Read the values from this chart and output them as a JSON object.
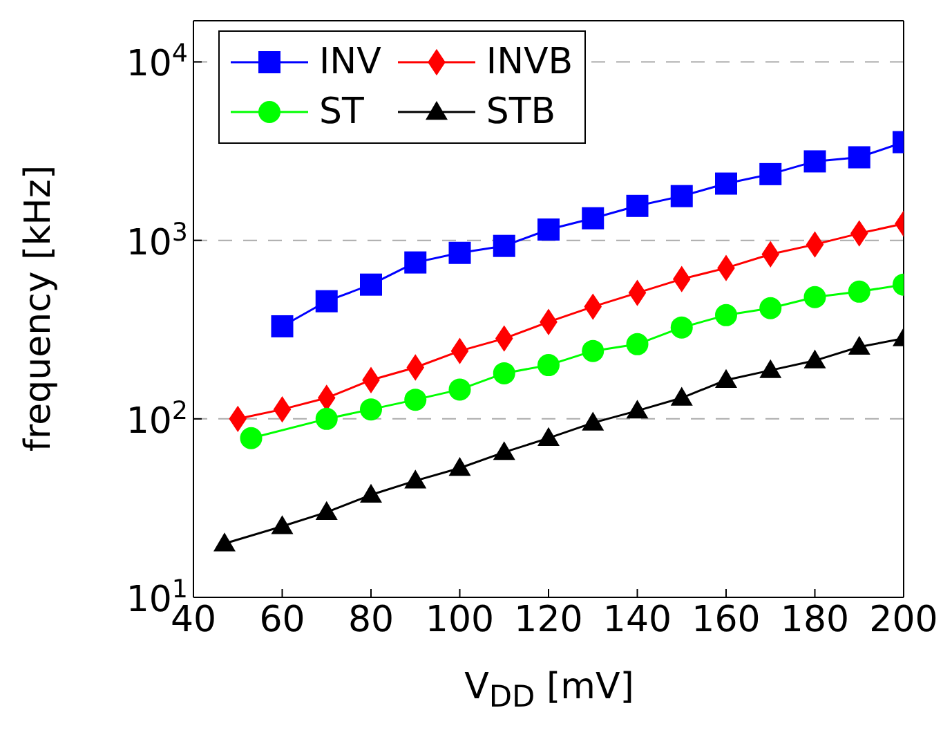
{
  "chart_data": {
    "type": "line",
    "xlabel": "V$_{DD}$ [mV]",
    "ylabel": "frequency [kHz]",
    "xlim": [
      40,
      200
    ],
    "xticks": [
      40,
      60,
      80,
      100,
      120,
      140,
      160,
      180,
      200
    ],
    "ylim": [
      10,
      17000
    ],
    "yticks": [
      {
        "value": 10,
        "label": "10$^{1}$"
      },
      {
        "value": 100,
        "label": "10$^{2}$"
      },
      {
        "value": 1000,
        "label": "10$^{3}$"
      },
      {
        "value": 10000,
        "label": "10$^{4}$"
      }
    ],
    "log": "y",
    "grid": "y",
    "legend": "top left",
    "line_style": "solid",
    "series": [
      {
        "name": "INV",
        "color": "#0000ff",
        "marker": "square",
        "x": [
          60,
          70,
          80,
          90,
          100,
          110,
          120,
          130,
          140,
          150,
          160,
          170,
          180,
          190,
          200
        ],
        "values": [
          330,
          456,
          565,
          752,
          851,
          931,
          1150,
          1330,
          1560,
          1770,
          2080,
          2350,
          2770,
          2920,
          3550
        ]
      },
      {
        "name": "INVB",
        "color": "#ff0000",
        "marker": "diamond",
        "x": [
          50,
          60,
          70,
          80,
          90,
          100,
          110,
          120,
          130,
          140,
          150,
          160,
          170,
          180,
          190,
          200
        ],
        "values": [
          100,
          113,
          131,
          165,
          194,
          240,
          282,
          349,
          425,
          508,
          607,
          700,
          836,
          948,
          1094,
          1240
        ]
      },
      {
        "name": "ST",
        "color": "#00ff00",
        "marker": "circle",
        "x": [
          53,
          70,
          80,
          90,
          100,
          110,
          120,
          130,
          140,
          150,
          160,
          170,
          180,
          190,
          200
        ],
        "values": [
          78,
          100,
          113,
          128,
          146,
          180,
          200,
          240,
          262,
          325,
          381,
          417,
          481,
          516,
          565
        ]
      },
      {
        "name": "STB",
        "color": "#000000",
        "marker": "triangle",
        "x": [
          47,
          60,
          70,
          80,
          90,
          100,
          110,
          120,
          130,
          140,
          150,
          160,
          170,
          180,
          190,
          200
        ],
        "values": [
          20,
          25,
          30,
          37.5,
          45,
          53,
          65,
          78,
          95,
          111,
          131,
          165,
          187,
          212,
          253,
          282
        ]
      }
    ]
  }
}
